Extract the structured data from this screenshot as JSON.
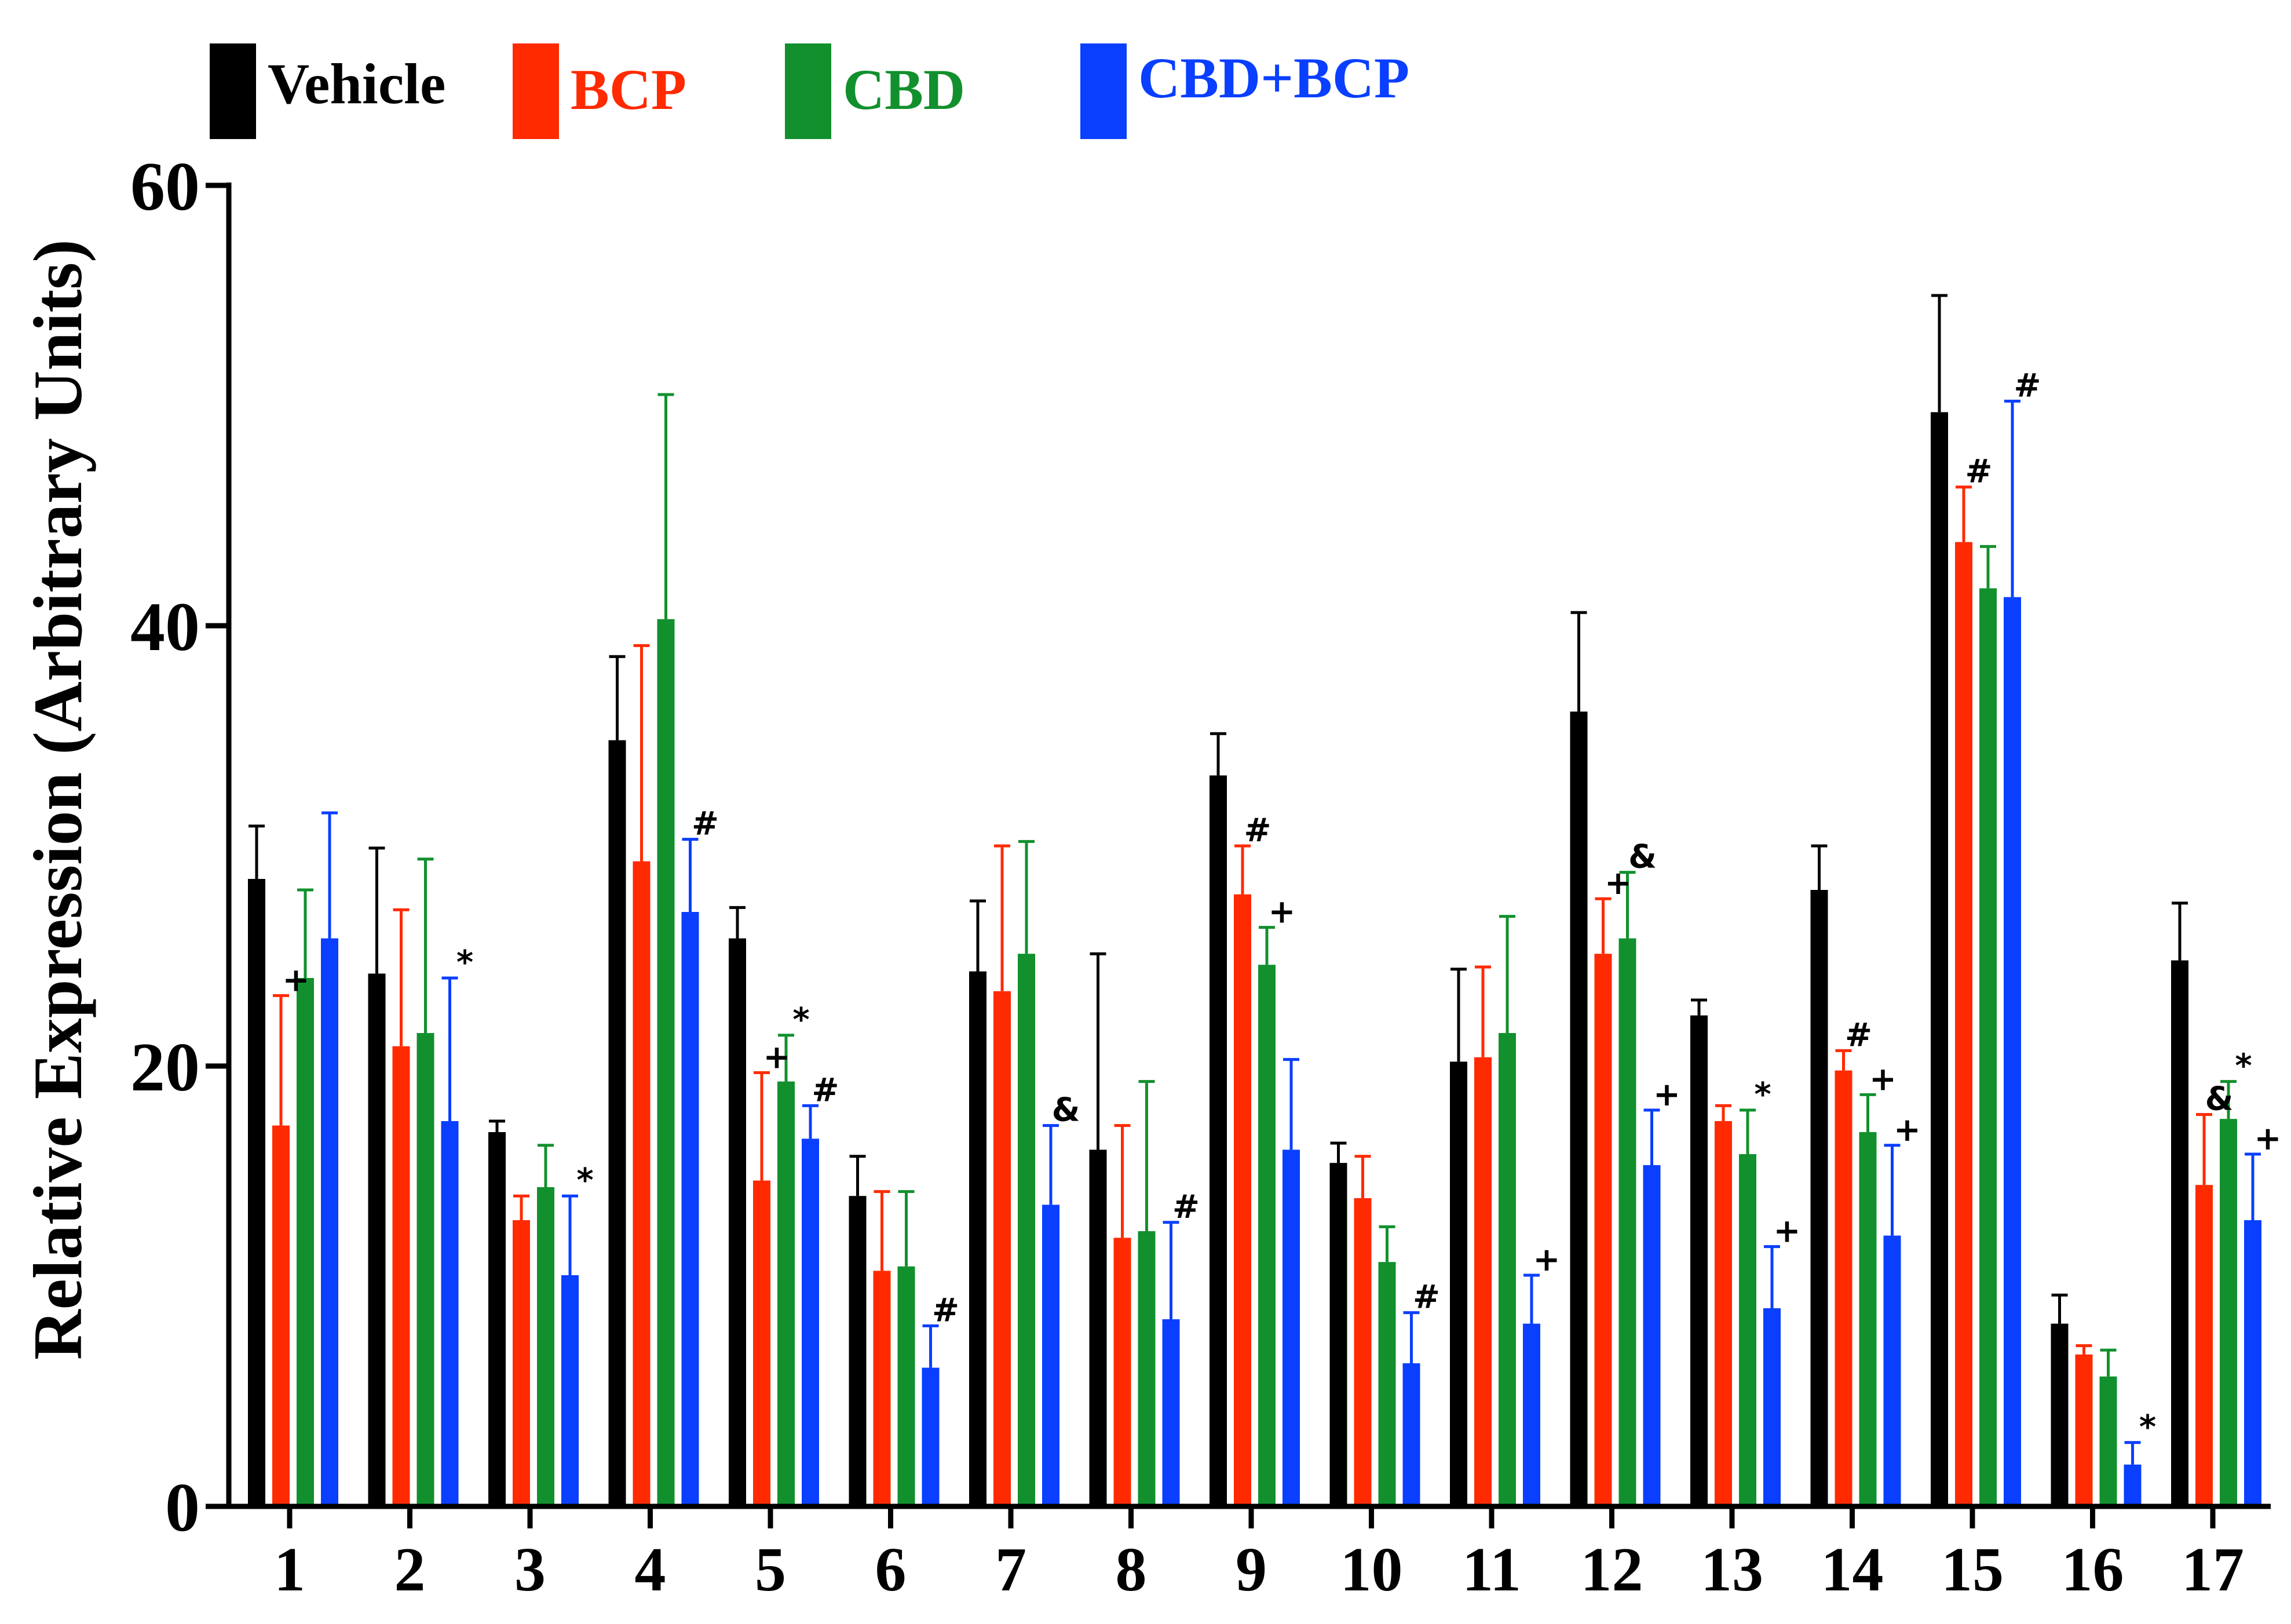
{
  "chart_data": {
    "type": "bar",
    "title": "",
    "xlabel": "",
    "ylabel": "Relative Expression (Arbitrary Units)",
    "ylim": [
      0,
      60
    ],
    "yticks": [
      0,
      20,
      40,
      60
    ],
    "grid": false,
    "legend_position": "top-left",
    "categories": [
      "1",
      "2",
      "3",
      "4",
      "5",
      "6",
      "7",
      "8",
      "9",
      "10",
      "11",
      "12",
      "13",
      "14",
      "15",
      "16",
      "17"
    ],
    "series": [
      {
        "name": "Vehicle",
        "color": "#000000",
        "values": [
          28.5,
          24.2,
          17.0,
          34.8,
          25.8,
          14.1,
          24.3,
          16.2,
          33.2,
          15.6,
          20.2,
          36.1,
          22.3,
          28.0,
          49.7,
          8.3,
          24.8
        ],
        "errors": [
          2.4,
          5.7,
          0.5,
          3.8,
          1.4,
          1.8,
          3.2,
          8.9,
          1.9,
          0.9,
          4.2,
          4.5,
          0.7,
          2.0,
          5.3,
          1.3,
          2.6
        ],
        "annotations": [
          "",
          "",
          "",
          "",
          "",
          "",
          "",
          "",
          "",
          "",
          "",
          "",
          "",
          "",
          "",
          "",
          ""
        ]
      },
      {
        "name": "BCP",
        "color": "#ff2a00",
        "values": [
          17.3,
          20.9,
          13.0,
          29.3,
          14.8,
          10.7,
          23.4,
          12.2,
          27.8,
          14.0,
          20.4,
          25.1,
          17.5,
          19.8,
          43.8,
          6.9,
          14.6
        ],
        "errors": [
          5.9,
          6.2,
          1.1,
          9.8,
          4.9,
          3.6,
          6.6,
          5.1,
          2.2,
          1.9,
          4.1,
          2.5,
          0.7,
          0.9,
          2.5,
          0.4,
          3.2
        ],
        "annotations": [
          "+",
          "",
          "",
          "",
          "+",
          "",
          "",
          "",
          "#",
          "",
          "",
          "+",
          "",
          "#",
          "#",
          "",
          "&"
        ]
      },
      {
        "name": "CBD",
        "color": "#12902e",
        "values": [
          24.0,
          21.5,
          14.5,
          40.3,
          19.3,
          10.9,
          25.1,
          12.5,
          24.6,
          11.1,
          21.5,
          25.8,
          16.0,
          17.0,
          41.7,
          5.9,
          17.6
        ],
        "errors": [
          4.0,
          7.9,
          1.9,
          10.2,
          2.1,
          3.4,
          5.1,
          6.8,
          1.7,
          1.6,
          5.3,
          3.0,
          2.0,
          1.7,
          1.9,
          1.2,
          1.7
        ],
        "annotations": [
          "",
          "",
          "",
          "",
          "*",
          "",
          "",
          "",
          "+",
          "",
          "",
          "&",
          "*",
          "+",
          "",
          "",
          "*"
        ]
      },
      {
        "name": "CBD+BCP",
        "color": "#0a3fff",
        "values": [
          25.8,
          17.5,
          10.5,
          27.0,
          16.7,
          6.3,
          13.7,
          8.5,
          16.2,
          6.5,
          8.3,
          15.5,
          9.0,
          12.3,
          41.3,
          1.9,
          13.0
        ],
        "errors": [
          5.7,
          6.5,
          3.6,
          3.3,
          1.5,
          1.9,
          3.6,
          4.4,
          4.1,
          2.3,
          2.2,
          2.5,
          2.8,
          4.1,
          8.9,
          1.0,
          3.0
        ],
        "annotations": [
          "",
          "*",
          "*",
          "#",
          "#",
          "#",
          "&",
          "#",
          "",
          "#",
          "+",
          "+",
          "+",
          "+",
          "#",
          "*",
          "+"
        ]
      }
    ]
  }
}
